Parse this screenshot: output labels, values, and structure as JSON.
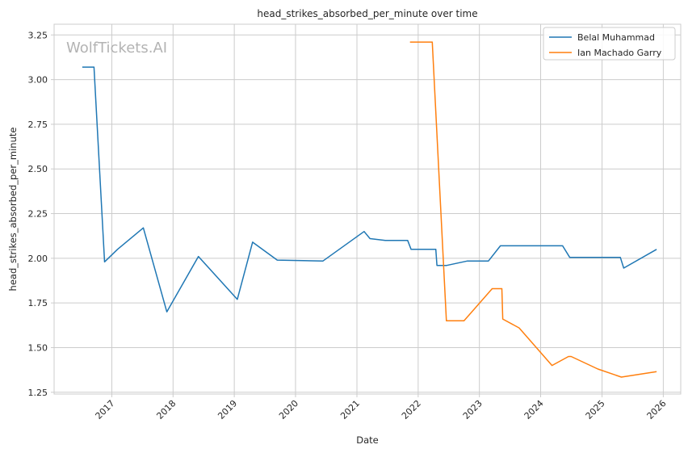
{
  "chart_data": {
    "type": "line",
    "title": "head_strikes_absorbed_per_minute over time",
    "xlabel": "Date",
    "ylabel": "head_strikes_absorbed_per_minute",
    "watermark": "WolfTickets.AI",
    "grid": true,
    "legend_position": "top-right",
    "xlim": [
      "2016-01-23",
      "2026-04-15"
    ],
    "ylim": [
      1.24,
      3.31
    ],
    "x_ticks": [
      "2017-01-01",
      "2018-01-01",
      "2019-01-01",
      "2020-01-01",
      "2021-01-01",
      "2022-01-01",
      "2023-01-01",
      "2024-01-01",
      "2025-01-01",
      "2026-01-01"
    ],
    "x_tick_labels": [
      "2017",
      "2018",
      "2019",
      "2020",
      "2021",
      "2022",
      "2023",
      "2024",
      "2025",
      "2026"
    ],
    "y_ticks": [
      1.25,
      1.5,
      1.75,
      2.0,
      2.25,
      2.5,
      2.75,
      3.0,
      3.25
    ],
    "y_tick_labels": [
      "1.25",
      "1.50",
      "1.75",
      "2.00",
      "2.25",
      "2.50",
      "2.75",
      "3.00",
      "3.25"
    ],
    "series": [
      {
        "name": "Belal Muhammad",
        "color": "#1f77b4",
        "x": [
          "2016-07-09",
          "2016-09-17",
          "2016-11-19",
          "2017-02-04",
          "2017-07-08",
          "2017-11-25",
          "2018-06-01",
          "2019-01-19",
          "2019-04-20",
          "2019-09-14",
          "2020-06-13",
          "2021-02-13",
          "2021-03-20",
          "2021-06-19",
          "2021-10-30",
          "2021-11-20",
          "2022-04-16",
          "2022-04-23",
          "2022-06-20",
          "2022-10-22",
          "2023-02-24",
          "2023-05-06",
          "2024-05-11",
          "2024-06-22",
          "2025-04-20",
          "2025-05-10",
          "2025-11-22"
        ],
        "y": [
          3.07,
          3.07,
          1.98,
          2.05,
          2.17,
          1.7,
          2.01,
          1.77,
          2.09,
          1.99,
          1.985,
          2.15,
          2.11,
          2.1,
          2.1,
          2.05,
          2.05,
          1.96,
          1.96,
          1.985,
          1.985,
          2.07,
          2.07,
          2.005,
          2.005,
          1.945,
          2.05
        ]
      },
      {
        "name": "Ian Machado Garry",
        "color": "#ff7f0e",
        "x": [
          "2021-11-13",
          "2022-03-26",
          "2022-06-18",
          "2022-10-01",
          "2023-03-18",
          "2023-05-15",
          "2023-05-20",
          "2023-08-26",
          "2024-03-09",
          "2024-06-15",
          "2024-07-01",
          "2024-12-07",
          "2025-04-26",
          "2025-11-22"
        ],
        "y": [
          3.21,
          3.21,
          1.65,
          1.65,
          1.83,
          1.83,
          1.66,
          1.61,
          1.4,
          1.45,
          1.45,
          1.38,
          1.335,
          1.365
        ]
      }
    ]
  }
}
